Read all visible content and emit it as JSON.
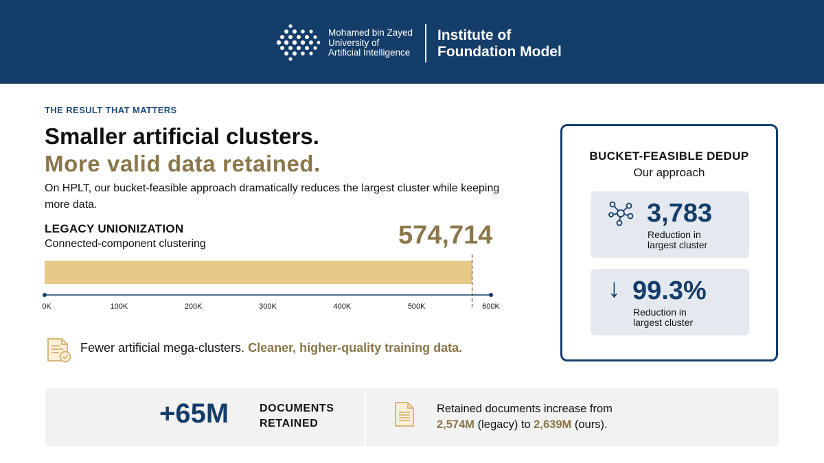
{
  "header": {
    "university_line1": "Mohamed bin Zayed",
    "university_line2": "University of",
    "university_line3": "Artificial Intelligence",
    "institute_line1": "Institute of",
    "institute_line2": "Foundation Model"
  },
  "eyebrow": "THE RESULT THAT MATTERS",
  "headline": {
    "line1": "Smaller artificial clusters.",
    "line2": "More valid data retained."
  },
  "description": "On HPLT, our bucket-feasible approach dramatically reduces the largest cluster while keeping more data.",
  "legacy": {
    "title": "LEGACY UNIONIZATION",
    "subtitle": "Connected-component clustering",
    "value_label": "574,714"
  },
  "chart_data": {
    "type": "bar",
    "orientation": "horizontal",
    "categories": [
      "Legacy unionization"
    ],
    "values": [
      574714
    ],
    "xlim": [
      0,
      600000
    ],
    "xticks": [
      0,
      100000,
      200000,
      300000,
      400000,
      500000,
      600000
    ],
    "xtick_labels": [
      "0K",
      "100K",
      "200K",
      "300K",
      "400K",
      "500K",
      "600K"
    ],
    "bar_color": "#e8c887",
    "axis_color": "#153d6a",
    "marker_color": "#8a7649",
    "grid": false
  },
  "fewer": {
    "text_plain": "Fewer artificial mega-clusters.",
    "text_highlight": "Cleaner, higher-quality training data."
  },
  "card": {
    "title": "BUCKET-FEASIBLE DEDUP",
    "subtitle": "Our approach",
    "stat1": {
      "icon": "network-icon",
      "value": "3,783",
      "label_line1": "Reduction in",
      "label_line2": "largest cluster"
    },
    "stat2": {
      "icon": "arrow-down-icon",
      "arrow": "↓",
      "value": "99.3%",
      "label_line1": "Reduction in",
      "label_line2": "largest cluster"
    }
  },
  "bottom": {
    "value": "+65M",
    "label_line1": "DOCUMENTS",
    "label_line2": "RETAINED",
    "retained_line1": "Retained documents increase from",
    "legacy_value": "2,574M",
    "legacy_text": " (legacy) to ",
    "ours_value": "2,639M",
    "ours_text": " (ours)."
  },
  "colors": {
    "navy": "#153d6a",
    "gold": "#8a7649",
    "bar_gold": "#e8c887",
    "panel_gray": "#f2f2f3",
    "stat_bg": "#e4e9f0"
  }
}
